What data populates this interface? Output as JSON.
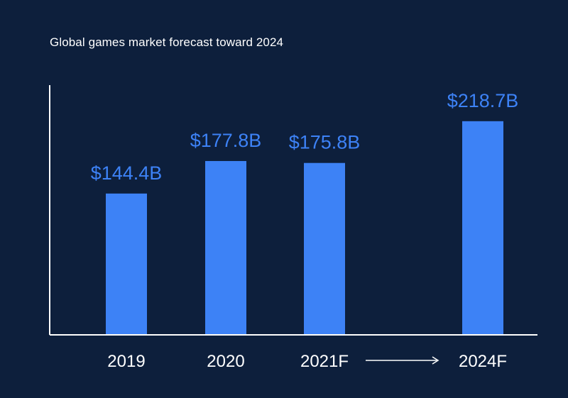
{
  "chart_data": {
    "type": "bar",
    "title": "Global games market forecast toward 2024",
    "categories": [
      "2019",
      "2020",
      "2021F",
      "2024F"
    ],
    "values": [
      144.4,
      177.8,
      175.8,
      218.7
    ],
    "value_labels": [
      "$144.4B",
      "$177.8B",
      "$175.8B",
      "$218.7B"
    ],
    "units": "USD billions",
    "xlabel": "",
    "ylabel": "",
    "ylim": [
      0,
      255
    ],
    "grid": false,
    "annotations": [
      {
        "type": "arrow",
        "from": "2021F",
        "to": "2024F"
      }
    ]
  },
  "colors": {
    "background": "#0d1f3c",
    "bar": "#3d82f6",
    "value_label": "#3d82f6",
    "axis": "#ffffff",
    "text": "#ffffff"
  }
}
